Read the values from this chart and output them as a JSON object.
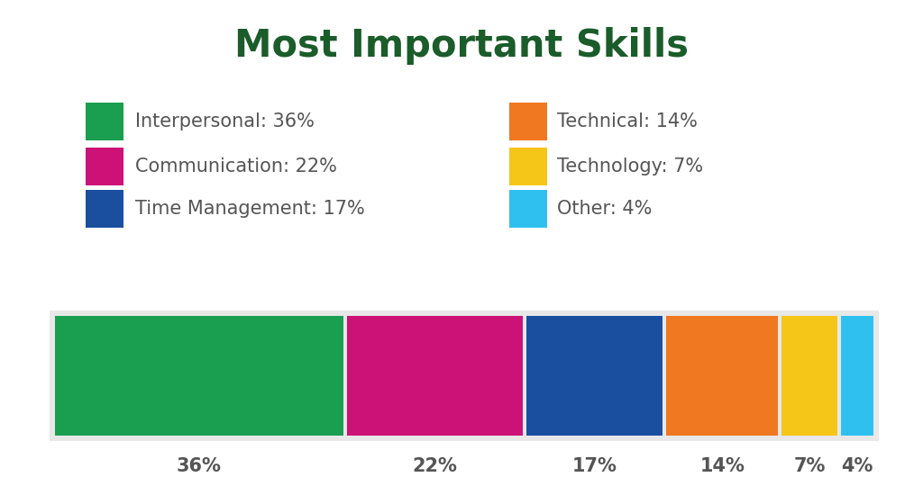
{
  "title": "Most Important Skills",
  "title_color": "#1a5c2a",
  "title_fontsize": 30,
  "values": [
    36,
    22,
    17,
    14,
    7,
    4
  ],
  "colors": [
    "#1a9e50",
    "#cc1177",
    "#1a4fa0",
    "#f07820",
    "#f5c518",
    "#30c0f0"
  ],
  "legend_labels": [
    "Interpersonal: 36%",
    "Communication: 22%",
    "Time Management: 17%",
    "Technical: 14%",
    "Technology: 7%",
    "Other: 4%"
  ],
  "tick_labels": [
    "36%",
    "22%",
    "17%",
    "14%",
    "7%",
    "4%"
  ],
  "background_color": "#ffffff",
  "bar_background": "#e8e8e8",
  "label_color": "#555555",
  "legend_fontsize": 15,
  "tick_fontsize": 15
}
